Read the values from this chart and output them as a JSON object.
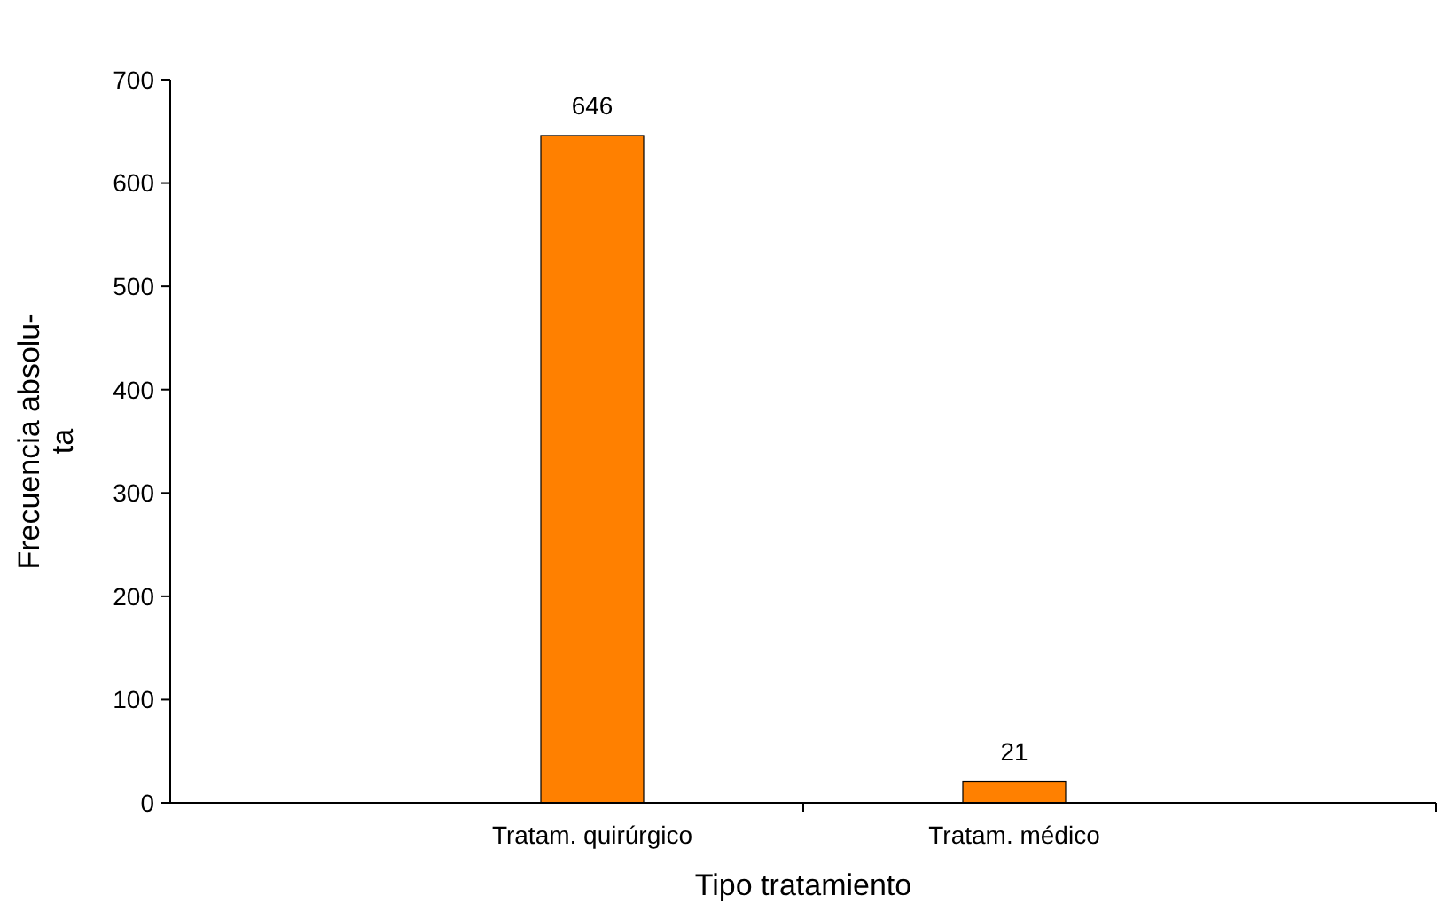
{
  "chart_data": {
    "type": "bar",
    "xlabel": "Tipo tratamiento",
    "ylabel": "Frecuencia absolu-\nta",
    "categories": [
      "Tratam. quirúrgico",
      "Tratam. médico"
    ],
    "values": [
      646,
      21
    ],
    "color": "#ff8000",
    "ylim": [
      0,
      700
    ],
    "yticks": [
      0,
      100,
      200,
      300,
      400,
      500,
      600,
      700
    ],
    "grid": false,
    "data_labels": true
  }
}
